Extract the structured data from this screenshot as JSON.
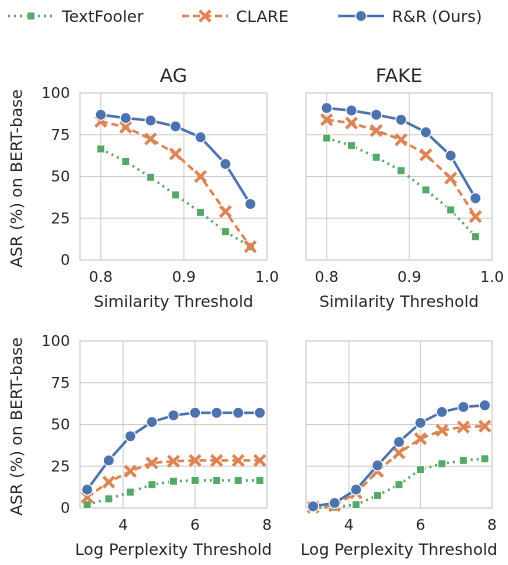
{
  "legend": {
    "items": [
      {
        "label": "TextFooler",
        "color": "#55a868",
        "marker": "square",
        "dash": "dotted"
      },
      {
        "label": "CLARE",
        "color": "#dd8452",
        "marker": "x",
        "dash": "dashed"
      },
      {
        "label": "R&R (Ours)",
        "color": "#4c72b0",
        "marker": "circle",
        "dash": "solid"
      }
    ]
  },
  "chart_data": [
    {
      "type": "line",
      "title": "AG",
      "xlabel": "Similarity Threshold",
      "ylabel": "ASR (%) on BERT-base",
      "xlim": [
        0.775,
        1.0
      ],
      "ylim": [
        0,
        100
      ],
      "xticks": [
        "0.8",
        "0.9",
        "1.0"
      ],
      "yticks": [
        "0",
        "25",
        "50",
        "75",
        "100"
      ],
      "x": [
        0.8,
        0.83,
        0.86,
        0.89,
        0.92,
        0.95,
        0.98
      ],
      "series": [
        {
          "name": "TextFooler",
          "values": [
            66.5,
            59,
            49.5,
            39,
            28.5,
            17,
            8
          ]
        },
        {
          "name": "CLARE",
          "values": [
            83,
            79.5,
            72.5,
            63.5,
            50,
            29,
            8
          ]
        },
        {
          "name": "R&R (Ours)",
          "values": [
            87,
            85,
            83.5,
            80,
            73.5,
            57.5,
            33.5
          ]
        }
      ]
    },
    {
      "type": "line",
      "title": "FAKE",
      "xlabel": "Similarity Threshold",
      "ylabel": "",
      "xlim": [
        0.775,
        1.0
      ],
      "ylim": [
        0,
        100
      ],
      "xticks": [
        "0.8",
        "0.9",
        "1.0"
      ],
      "yticks": [],
      "x": [
        0.8,
        0.83,
        0.86,
        0.89,
        0.92,
        0.95,
        0.98
      ],
      "series": [
        {
          "name": "TextFooler",
          "values": [
            73,
            68.5,
            61.5,
            53.5,
            42,
            30,
            14
          ]
        },
        {
          "name": "CLARE",
          "values": [
            84,
            82,
            77.5,
            72,
            63,
            49,
            26
          ]
        },
        {
          "name": "R&R (Ours)",
          "values": [
            91,
            89.5,
            87,
            84,
            76.5,
            62.5,
            37
          ]
        }
      ]
    },
    {
      "type": "line",
      "title": "",
      "xlabel": "Log Perplexity Threshold",
      "ylabel": "ASR (%) on BERT-base",
      "xlim": [
        2.8,
        8.0
      ],
      "ylim": [
        0,
        100
      ],
      "xticks": [
        "4",
        "6",
        "8"
      ],
      "yticks": [
        "0",
        "25",
        "50",
        "75",
        "100"
      ],
      "x": [
        3.0,
        3.6,
        4.2,
        4.8,
        5.4,
        6.0,
        6.6,
        7.2,
        7.8
      ],
      "series": [
        {
          "name": "TextFooler",
          "values": [
            2,
            5.5,
            9.5,
            14,
            16,
            16.5,
            16.5,
            16.5,
            16.5
          ]
        },
        {
          "name": "CLARE",
          "values": [
            6.5,
            15.5,
            22,
            27,
            28,
            28.5,
            28.5,
            28.5,
            28.5
          ]
        },
        {
          "name": "R&R (Ours)",
          "values": [
            11,
            28.5,
            43,
            51.5,
            55.5,
            57,
            57,
            57,
            57
          ]
        }
      ]
    },
    {
      "type": "line",
      "title": "",
      "xlabel": "Log Perplexity Threshold",
      "ylabel": "",
      "xlim": [
        2.8,
        8.0
      ],
      "ylim": [
        0,
        100
      ],
      "xticks": [
        "4",
        "6",
        "8"
      ],
      "yticks": [],
      "x": [
        3.0,
        3.6,
        4.2,
        4.8,
        5.4,
        6.0,
        6.6,
        7.2,
        7.8
      ],
      "series": [
        {
          "name": "TextFooler",
          "values": [
            0,
            0.5,
            2,
            7.5,
            14,
            23,
            26.5,
            28.5,
            29.5
          ]
        },
        {
          "name": "CLARE",
          "values": [
            0.5,
            1.5,
            9,
            22,
            33,
            41.5,
            46.5,
            48.5,
            49
          ]
        },
        {
          "name": "R&R (Ours)",
          "values": [
            1,
            3,
            11,
            25.5,
            39.5,
            51,
            57.5,
            60.5,
            61.5
          ]
        }
      ]
    }
  ]
}
